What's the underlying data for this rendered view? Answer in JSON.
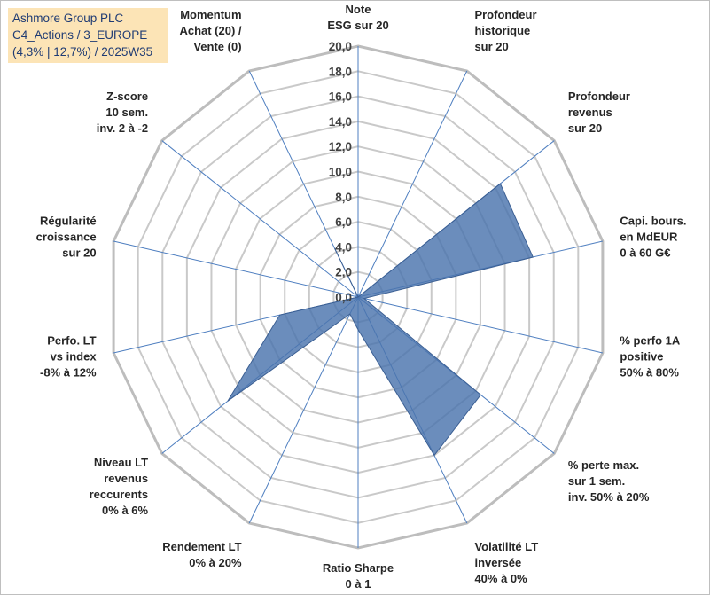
{
  "title_lines": [
    "Ashmore Group PLC",
    "C4_Actions / 3_EUROPE",
    "(4,3% | 12,7%) / 2025W35"
  ],
  "colors": {
    "fill": "#4a74ad",
    "stroke": "#3b5f93",
    "grid": "#c9c9c9",
    "spokes": "#4f7fc0",
    "title_bg": "#fce4b6",
    "title_text": "#1f3b73"
  },
  "chart_data": {
    "type": "radar",
    "rlim": [
      0,
      20
    ],
    "ticks": [
      "0,0",
      "2,0",
      "4,0",
      "6,0",
      "8,0",
      "10,0",
      "12,0",
      "14,0",
      "16,0",
      "18,0",
      "20,0"
    ],
    "grid": true,
    "axes": [
      {
        "label": [
          "Note",
          "ESG sur 20"
        ]
      },
      {
        "label": [
          "Profondeur",
          "historique",
          "sur 20"
        ]
      },
      {
        "label": [
          "Profondeur",
          "revenus",
          "sur 20"
        ]
      },
      {
        "label": [
          "Capi. bours.",
          "en MdEUR",
          "0 à 60 G€"
        ]
      },
      {
        "label": [
          "% perfo 1A",
          "positive",
          "50% à 80%"
        ]
      },
      {
        "label": [
          "% perte max.",
          "sur 1 sem.",
          "inv. 50% à 20%"
        ]
      },
      {
        "label": [
          "Volatilité LT",
          "inversée",
          "40% à 0%"
        ]
      },
      {
        "label": [
          "Ratio Sharpe",
          "0 à 1"
        ]
      },
      {
        "label": [
          "Rendement LT",
          "0% à 20%"
        ]
      },
      {
        "label": [
          "Niveau LT",
          "revenus",
          "reccurents",
          "0% à 6%"
        ]
      },
      {
        "label": [
          "Perfo. LT",
          "vs index",
          "-8% à 12%"
        ]
      },
      {
        "label": [
          "Régularité",
          "croissance",
          "sur 20"
        ]
      },
      {
        "label": [
          "Z-score",
          "10 sem.",
          "inv. 2 à -2"
        ]
      },
      {
        "label": [
          "Momentum",
          "Achat (20) /",
          "Vente (0)"
        ]
      }
    ],
    "series": [
      {
        "values": [
          0,
          0,
          14.5,
          14.3,
          0.5,
          12.5,
          14.0,
          2.6,
          1.5,
          13.3,
          6.4,
          0,
          0,
          4.3
        ]
      }
    ]
  }
}
